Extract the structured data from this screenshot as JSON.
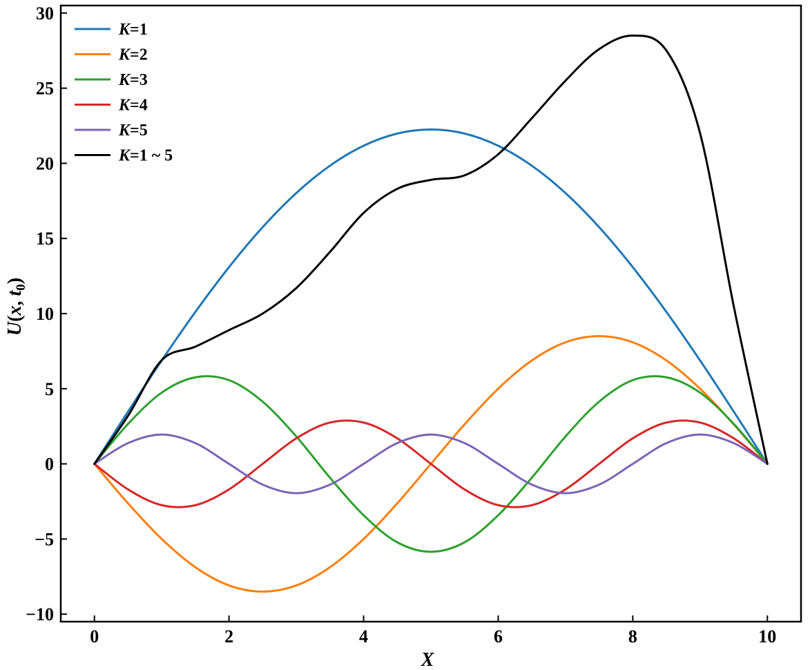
{
  "chart_data": {
    "type": "line",
    "title": "",
    "xlabel": "X",
    "ylabel": {
      "prefix": "U(",
      "var1": "x",
      "sep": ",",
      "var2": "t",
      "sub": "0",
      "suffix": ")"
    },
    "xlim": [
      -0.5,
      10.5
    ],
    "ylim": [
      -10.5,
      30.5
    ],
    "xticks": [
      0,
      2,
      4,
      6,
      8,
      10
    ],
    "xtick_labels": [
      "0",
      "2",
      "4",
      "6",
      "8",
      "10"
    ],
    "yticks": [
      -10,
      -5,
      0,
      5,
      10,
      15,
      20,
      25,
      30
    ],
    "ytick_labels": [
      "−10",
      "−5",
      "0",
      "5",
      "10",
      "15",
      "20",
      "25",
      "30"
    ],
    "grid": false,
    "legend_position": "top-left",
    "x": [
      0,
      0.5,
      1,
      1.5,
      2,
      2.5,
      3,
      3.5,
      4,
      4.5,
      5,
      5.5,
      6,
      6.5,
      7,
      7.5,
      8,
      8.5,
      9,
      9.5,
      10
    ],
    "series": [
      {
        "name": "K=1",
        "color": "#1f77b4",
        "values": [
          0,
          3.48,
          6.88,
          10.11,
          13.09,
          15.75,
          18.02,
          19.84,
          21.17,
          21.98,
          22.25,
          21.98,
          21.17,
          19.84,
          18.02,
          15.75,
          13.09,
          10.11,
          6.88,
          3.48,
          0
        ]
      },
      {
        "name": "K=2",
        "color": "#ff7f0e",
        "values": [
          0,
          -2.63,
          -5.0,
          -6.88,
          -8.09,
          -8.5,
          -8.09,
          -6.88,
          -5.0,
          -2.63,
          0,
          2.63,
          5.0,
          6.88,
          8.09,
          8.5,
          8.09,
          6.88,
          5.0,
          2.63,
          0
        ]
      },
      {
        "name": "K=3",
        "color": "#2ca02c",
        "values": [
          0,
          2.66,
          4.74,
          5.76,
          5.57,
          4.14,
          1.82,
          -0.92,
          -3.42,
          -5.22,
          -5.85,
          -5.22,
          -3.42,
          -0.92,
          1.82,
          4.14,
          5.57,
          5.76,
          4.74,
          2.66,
          0
        ]
      },
      {
        "name": "K=4",
        "color": "#d62728",
        "values": [
          0,
          -1.7,
          -2.75,
          -2.75,
          -1.7,
          0,
          1.7,
          2.75,
          2.75,
          1.7,
          0,
          -1.7,
          -2.75,
          -2.75,
          -1.7,
          0,
          1.7,
          2.75,
          2.75,
          1.7,
          0
        ]
      },
      {
        "name": "K=5",
        "color": "#7b64b5",
        "values": [
          0,
          1.38,
          1.95,
          1.38,
          0,
          -1.38,
          -1.95,
          -1.38,
          0,
          1.38,
          1.95,
          1.38,
          0,
          -1.38,
          -1.95,
          -1.38,
          0,
          1.38,
          1.95,
          1.38,
          0
        ]
      },
      {
        "name": "K=1 ~ 5",
        "color": "#000000",
        "values": [
          0,
          3.2,
          6.9,
          7.8,
          8.9,
          10.0,
          11.7,
          14.1,
          16.7,
          18.3,
          18.9,
          19.2,
          20.6,
          23.0,
          25.5,
          27.6,
          28.5,
          27.5,
          22.0,
          10.5,
          0
        ]
      }
    ]
  }
}
